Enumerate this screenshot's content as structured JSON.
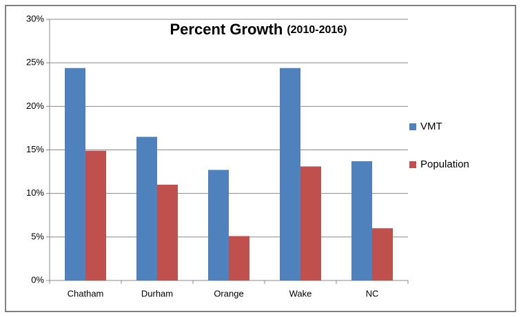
{
  "chart_data": {
    "type": "bar",
    "title": "Percent Growth",
    "subtitle": "(2010-2016)",
    "categories": [
      "Chatham",
      "Durham",
      "Orange",
      "Wake",
      "NC"
    ],
    "series": [
      {
        "name": "VMT",
        "color": "#4f81bd",
        "values": [
          24.4,
          16.5,
          12.7,
          24.4,
          13.7
        ]
      },
      {
        "name": "Population",
        "color": "#c0504d",
        "values": [
          14.9,
          11.0,
          5.1,
          13.1,
          6.0
        ]
      }
    ],
    "ylim": [
      0,
      30
    ],
    "yticks": [
      {
        "value": 0,
        "label": "0%"
      },
      {
        "value": 5,
        "label": "5%"
      },
      {
        "value": 10,
        "label": "10%"
      },
      {
        "value": 15,
        "label": "15%"
      },
      {
        "value": 20,
        "label": "20%"
      },
      {
        "value": 25,
        "label": "25%"
      },
      {
        "value": 30,
        "label": "30%"
      }
    ],
    "grid": true,
    "legend": "right"
  }
}
